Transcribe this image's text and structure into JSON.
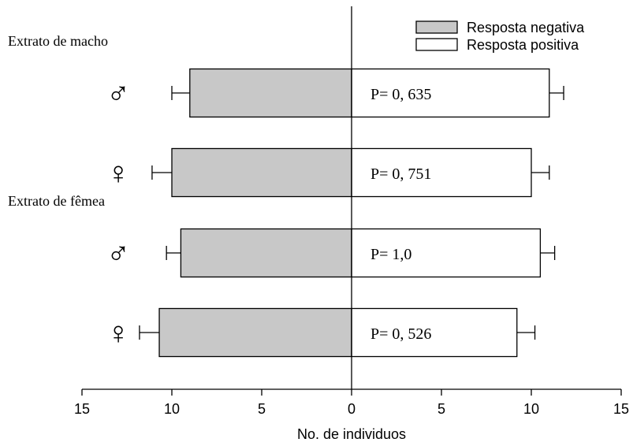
{
  "chart_data": {
    "type": "bar",
    "orientation": "horizontal-diverging",
    "xlabel": "No. de individuos",
    "xlim": [
      -15,
      15
    ],
    "x_ticks": [
      -15,
      -10,
      -5,
      0,
      5,
      10,
      15
    ],
    "x_tick_labels": [
      "15",
      "10",
      "5",
      "0",
      "5",
      "10",
      "15"
    ],
    "legend_position": "top-right",
    "legend": [
      {
        "label": "Resposta negativa",
        "fill": "#c8c8c8"
      },
      {
        "label": "Resposta positiva",
        "fill": "#ffffff"
      }
    ],
    "groups": [
      {
        "label": "Extrato de macho",
        "row_index": 0
      },
      {
        "label": "Extrato de fêmea",
        "row_index": 2
      }
    ],
    "rows": [
      {
        "sex_symbol": "♂",
        "icon": "male-symbol-icon",
        "negative": 9.0,
        "negative_err": 1.0,
        "positive": 11.0,
        "positive_err": 0.8,
        "p_label": "P= 0, 635"
      },
      {
        "sex_symbol": "♀",
        "icon": "female-symbol-icon",
        "negative": 10.0,
        "negative_err": 1.1,
        "positive": 10.0,
        "positive_err": 1.0,
        "p_label": "P= 0, 751"
      },
      {
        "sex_symbol": "♂",
        "icon": "male-symbol-icon",
        "negative": 9.5,
        "negative_err": 0.8,
        "positive": 10.5,
        "positive_err": 0.8,
        "p_label": "P= 1,0"
      },
      {
        "sex_symbol": "♀",
        "icon": "female-symbol-icon",
        "negative": 10.7,
        "negative_err": 1.1,
        "positive": 9.2,
        "positive_err": 1.0,
        "p_label": "P= 0, 526"
      }
    ],
    "grid": false
  }
}
